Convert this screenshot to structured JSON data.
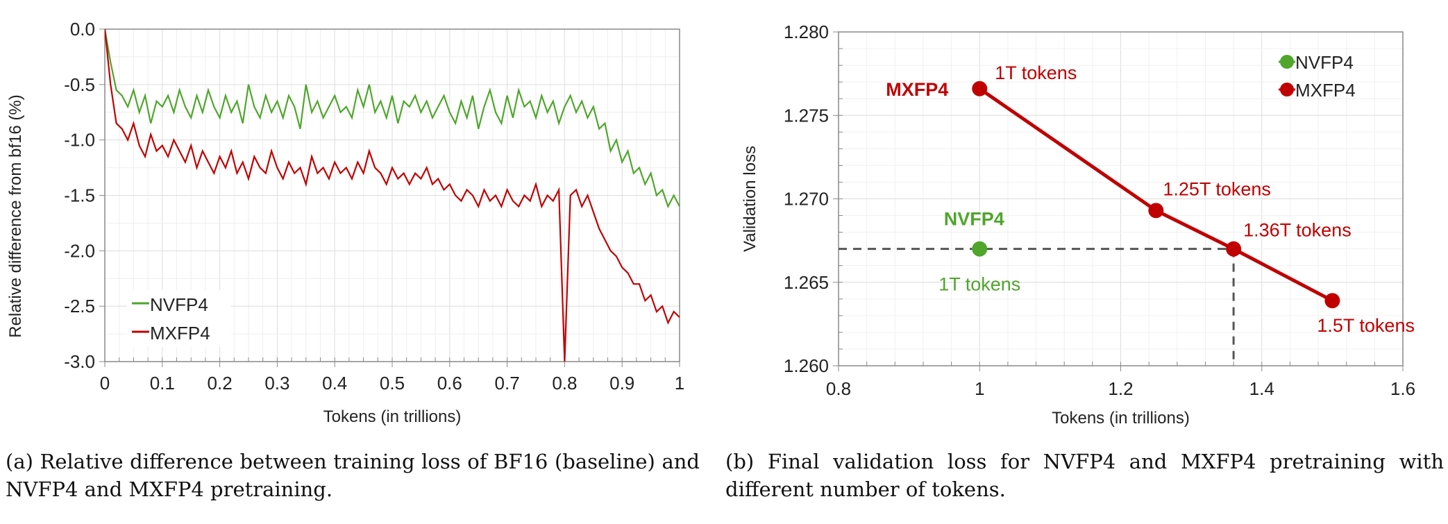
{
  "colors": {
    "nvfp4": "#4fa62b",
    "mxfp4": "#c00000",
    "grid": "#e4e4e4",
    "axis": "#888888",
    "dashed": "#555555"
  },
  "chart_data": [
    {
      "type": "line",
      "xlabel": "Tokens (in trillions)",
      "ylabel": "Relative difference from bf16 (%)",
      "xlim": [
        0,
        1
      ],
      "ylim": [
        -3.0,
        0.0
      ],
      "xticks": [
        "0",
        "0.1",
        "0.2",
        "0.3",
        "0.4",
        "0.5",
        "0.6",
        "0.7",
        "0.8",
        "0.9",
        "1"
      ],
      "yticks": [
        "0.0",
        "-0.5",
        "-1.0",
        "-1.5",
        "-2.0",
        "-2.5",
        "-3.0"
      ],
      "grid": true,
      "legend_position": "bottom-left",
      "x_step": 0.01,
      "series": [
        {
          "name": "NVFP4",
          "color": "#4fa62b",
          "values": [
            0,
            -0.3,
            -0.55,
            -0.6,
            -0.7,
            -0.55,
            -0.75,
            -0.6,
            -0.85,
            -0.65,
            -0.7,
            -0.6,
            -0.75,
            -0.55,
            -0.7,
            -0.8,
            -0.6,
            -0.75,
            -0.55,
            -0.7,
            -0.8,
            -0.6,
            -0.75,
            -0.65,
            -0.85,
            -0.5,
            -0.7,
            -0.8,
            -0.6,
            -0.75,
            -0.65,
            -0.8,
            -0.6,
            -0.7,
            -0.9,
            -0.5,
            -0.75,
            -0.65,
            -0.8,
            -0.7,
            -0.6,
            -0.75,
            -0.7,
            -0.8,
            -0.55,
            -0.7,
            -0.5,
            -0.75,
            -0.65,
            -0.8,
            -0.6,
            -0.85,
            -0.65,
            -0.7,
            -0.6,
            -0.75,
            -0.65,
            -0.8,
            -0.7,
            -0.6,
            -0.75,
            -0.85,
            -0.65,
            -0.8,
            -0.6,
            -0.9,
            -0.7,
            -0.55,
            -0.75,
            -0.85,
            -0.6,
            -0.8,
            -0.55,
            -0.7,
            -0.65,
            -0.8,
            -0.6,
            -0.75,
            -0.65,
            -0.85,
            -0.7,
            -0.6,
            -0.75,
            -0.65,
            -0.8,
            -0.7,
            -0.9,
            -0.85,
            -1.1,
            -1.0,
            -1.2,
            -1.1,
            -1.3,
            -1.25,
            -1.4,
            -1.3,
            -1.5,
            -1.45,
            -1.6,
            -1.5,
            -1.6
          ]
        },
        {
          "name": "MXFP4",
          "color": "#c00000",
          "values": [
            0,
            -0.5,
            -0.85,
            -0.9,
            -1.0,
            -0.85,
            -1.05,
            -1.15,
            -0.95,
            -1.1,
            -1.05,
            -1.15,
            -1.0,
            -1.1,
            -1.2,
            -1.05,
            -1.25,
            -1.1,
            -1.2,
            -1.3,
            -1.15,
            -1.25,
            -1.1,
            -1.3,
            -1.2,
            -1.35,
            -1.15,
            -1.25,
            -1.3,
            -1.1,
            -1.25,
            -1.35,
            -1.2,
            -1.3,
            -1.25,
            -1.4,
            -1.15,
            -1.3,
            -1.25,
            -1.35,
            -1.2,
            -1.3,
            -1.25,
            -1.35,
            -1.2,
            -1.3,
            -1.1,
            -1.25,
            -1.3,
            -1.4,
            -1.25,
            -1.35,
            -1.3,
            -1.4,
            -1.3,
            -1.35,
            -1.25,
            -1.4,
            -1.35,
            -1.45,
            -1.4,
            -1.5,
            -1.55,
            -1.45,
            -1.5,
            -1.6,
            -1.45,
            -1.55,
            -1.5,
            -1.6,
            -1.45,
            -1.55,
            -1.6,
            -1.5,
            -1.55,
            -1.4,
            -1.6,
            -1.5,
            -1.55,
            -1.45,
            -3.0,
            -1.5,
            -1.45,
            -1.6,
            -1.5,
            -1.65,
            -1.8,
            -1.9,
            -2.0,
            -2.05,
            -2.15,
            -2.2,
            -2.3,
            -2.3,
            -2.45,
            -2.4,
            -2.55,
            -2.5,
            -2.65,
            -2.55,
            -2.6
          ]
        }
      ]
    },
    {
      "type": "scatter",
      "xlabel": "Tokens (in trillions)",
      "ylabel": "Validation loss",
      "xlim": [
        0.8,
        1.6
      ],
      "ylim": [
        1.26,
        1.28
      ],
      "xticks": [
        "0.8",
        "1",
        "1.2",
        "1.4",
        "1.6"
      ],
      "yticks": [
        "1.280",
        "1.275",
        "1.270",
        "1.265",
        "1.260"
      ],
      "grid": true,
      "legend_position": "top-right",
      "series": [
        {
          "name": "NVFP4",
          "color": "#4fa62b",
          "points": [
            {
              "x": 1.0,
              "y": 1.267,
              "label": "1T tokens"
            }
          ],
          "series_label": "NVFP4"
        },
        {
          "name": "MXFP4",
          "color": "#c00000",
          "points": [
            {
              "x": 1.0,
              "y": 1.2766,
              "label": "1T tokens"
            },
            {
              "x": 1.25,
              "y": 1.2693,
              "label": "1.25T tokens"
            },
            {
              "x": 1.36,
              "y": 1.267,
              "label": "1.36T tokens"
            },
            {
              "x": 1.5,
              "y": 1.2639,
              "label": "1.5T tokens"
            }
          ],
          "series_label": "MXFP4"
        }
      ],
      "reference_lines": {
        "y": 1.267,
        "x": 1.36,
        "style": "dashed"
      }
    }
  ],
  "captions": {
    "a": "(a) Relative difference between training loss of BF16 (baseline) and NVFP4 and MXFP4 pretraining.",
    "b": "(b) Final validation loss for NVFP4 and MXFP4 pretraining with different number of tokens."
  }
}
